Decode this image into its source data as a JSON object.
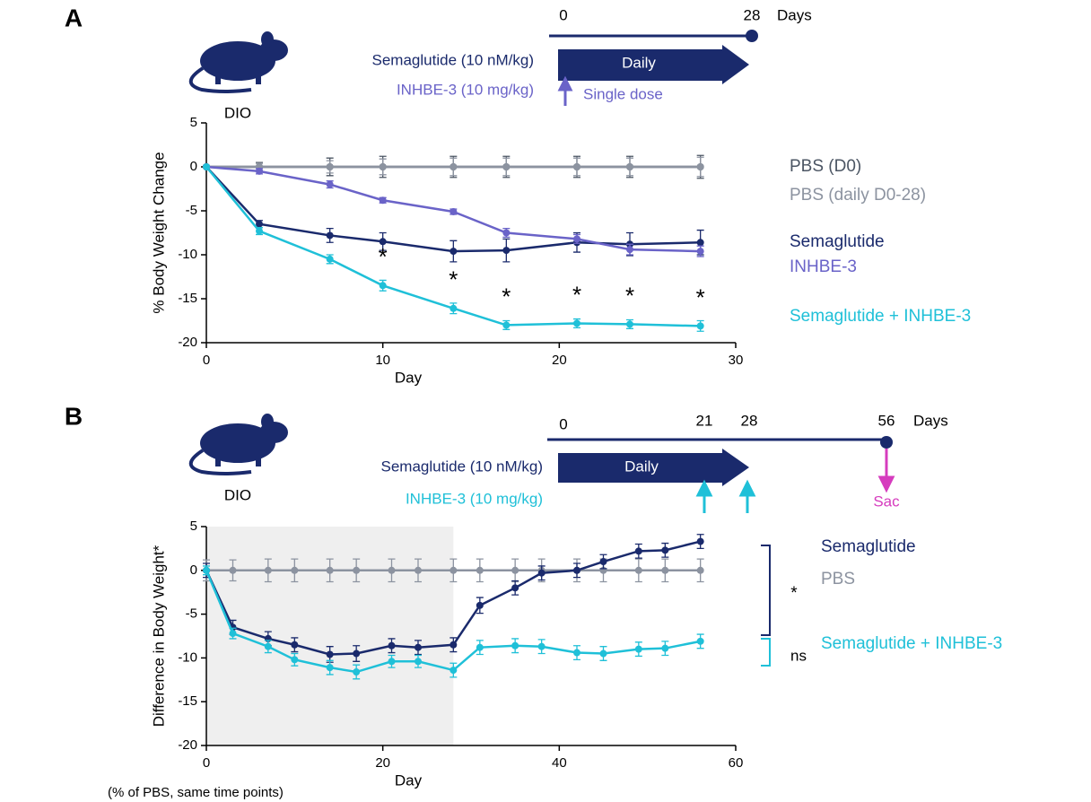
{
  "chart_data": [
    {
      "type": "line",
      "panel_label": "A",
      "model_label": "DIO",
      "treatments": [
        {
          "text": "Semaglutide (10 nM/kg)",
          "color": "#1a2a6c"
        },
        {
          "text": "INHBE-3 (10 mg/kg)",
          "color": "#6a63c8"
        }
      ],
      "timeline": {
        "labels": [
          "0",
          "28"
        ],
        "unit": "Days",
        "arrow_label": "Daily",
        "dose_label": "Single dose"
      },
      "x_label": "Day",
      "y_label": "% Body Weight Change",
      "xlim": [
        0,
        30
      ],
      "xticks": [
        0,
        10,
        20,
        30
      ],
      "ylim": [
        -20,
        5
      ],
      "yticks": [
        5,
        0,
        -5,
        -10,
        -15,
        -20
      ],
      "x": [
        0,
        3,
        7,
        10,
        14,
        17,
        21,
        24,
        28
      ],
      "series": [
        {
          "name": "PBS (D0)",
          "color": "#4b5563",
          "values": [
            0,
            0,
            0,
            0,
            0,
            0,
            0,
            0,
            0
          ],
          "errors": [
            0,
            0.5,
            1.0,
            1.2,
            1.2,
            1.2,
            1.2,
            1.2,
            1.3
          ]
        },
        {
          "name": "PBS (daily D0-28)",
          "color": "#8c93a0",
          "values": [
            0,
            0,
            0,
            0,
            0,
            0,
            0,
            0,
            0
          ],
          "errors": [
            0,
            0.4,
            0.7,
            0.9,
            1.0,
            1.0,
            1.0,
            1.0,
            1.1
          ]
        },
        {
          "name": "Semaglutide",
          "color": "#1a2a6c",
          "values": [
            0,
            -6.5,
            -7.8,
            -8.5,
            -9.6,
            -9.5,
            -8.6,
            -8.8,
            -8.6
          ],
          "errors": [
            0,
            0.4,
            0.8,
            1.0,
            1.2,
            1.3,
            1.1,
            1.3,
            1.4
          ]
        },
        {
          "name": "INHBE-3",
          "color": "#6a63c8",
          "values": [
            0,
            -0.5,
            -2.0,
            -3.8,
            -5.1,
            -7.5,
            -8.2,
            -9.4,
            -9.6
          ],
          "errors": [
            0,
            0.3,
            0.4,
            0.3,
            0.3,
            0.5,
            0.5,
            0.6,
            0.6
          ]
        },
        {
          "name": "Semaglutide + INHBE-3",
          "color": "#1fc0d8",
          "values": [
            0,
            -7.3,
            -10.5,
            -13.5,
            -16.1,
            -18.0,
            -17.8,
            -17.9,
            -18.1
          ],
          "errors": [
            0,
            0.4,
            0.5,
            0.6,
            0.6,
            0.5,
            0.5,
            0.5,
            0.6
          ]
        }
      ],
      "annotations": [
        {
          "text": "*",
          "x": 10
        },
        {
          "text": "*",
          "x": 14
        },
        {
          "text": "*",
          "x": 17
        },
        {
          "text": "*",
          "x": 21
        },
        {
          "text": "*",
          "x": 24
        },
        {
          "text": "*",
          "x": 28
        }
      ]
    },
    {
      "type": "line",
      "panel_label": "B",
      "model_label": "DIO",
      "treatments": [
        {
          "text": "Semaglutide (10 nM/kg)",
          "color": "#1a2a6c"
        },
        {
          "text": "INHBE-3 (10 mg/kg)",
          "color": "#1fc0d8"
        }
      ],
      "timeline": {
        "labels": [
          "0",
          "21",
          "28",
          "56"
        ],
        "unit": "Days",
        "arrow_label": "Daily",
        "end_label": "Sac"
      },
      "x_label": "Day",
      "y_label": "Difference in Body Weight*",
      "footnote": "(% of PBS, same time points)",
      "xlim": [
        0,
        60
      ],
      "xticks": [
        0,
        20,
        40,
        60
      ],
      "ylim": [
        -20,
        5
      ],
      "yticks": [
        5,
        0,
        -5,
        -10,
        -15,
        -20
      ],
      "shaded_region": [
        0,
        28
      ],
      "x": [
        0,
        3,
        7,
        10,
        14,
        17,
        21,
        24,
        28,
        31,
        35,
        38,
        42,
        45,
        49,
        52,
        56
      ],
      "series": [
        {
          "name": "PBS",
          "color": "#8c93a0",
          "values": [
            0,
            0,
            0,
            0,
            0,
            0,
            0,
            0,
            0,
            0,
            0,
            0,
            0,
            0,
            0,
            0,
            0
          ],
          "errors": [
            1.2,
            1.2,
            1.3,
            1.3,
            1.3,
            1.3,
            1.3,
            1.3,
            1.3,
            1.3,
            1.3,
            1.3,
            1.3,
            1.3,
            1.3,
            1.3,
            1.3
          ]
        },
        {
          "name": "Semaglutide",
          "color": "#1a2a6c",
          "values": [
            0,
            -6.5,
            -7.8,
            -8.5,
            -9.6,
            -9.5,
            -8.6,
            -8.8,
            -8.5,
            -4.0,
            -2.0,
            -0.3,
            0,
            1.0,
            2.2,
            2.3,
            3.3
          ],
          "errors": [
            0.8,
            0.8,
            0.8,
            0.8,
            0.9,
            0.9,
            0.8,
            0.8,
            0.8,
            0.9,
            0.8,
            0.8,
            0.8,
            0.8,
            0.8,
            0.8,
            0.8
          ]
        },
        {
          "name": "Semaglutide + INHBE-3",
          "color": "#1fc0d8",
          "values": [
            0,
            -7.2,
            -8.7,
            -10.2,
            -11.1,
            -11.6,
            -10.4,
            -10.4,
            -11.4,
            -8.8,
            -8.6,
            -8.7,
            -9.4,
            -9.5,
            -9.0,
            -8.9,
            -8.1
          ],
          "errors": [
            0.5,
            0.6,
            0.7,
            0.7,
            0.8,
            0.8,
            0.7,
            0.7,
            0.8,
            0.8,
            0.8,
            0.8,
            0.8,
            0.8,
            0.8,
            0.8,
            0.8
          ]
        }
      ],
      "brackets": [
        {
          "label": "*"
        },
        {
          "label": "ns"
        }
      ]
    }
  ]
}
